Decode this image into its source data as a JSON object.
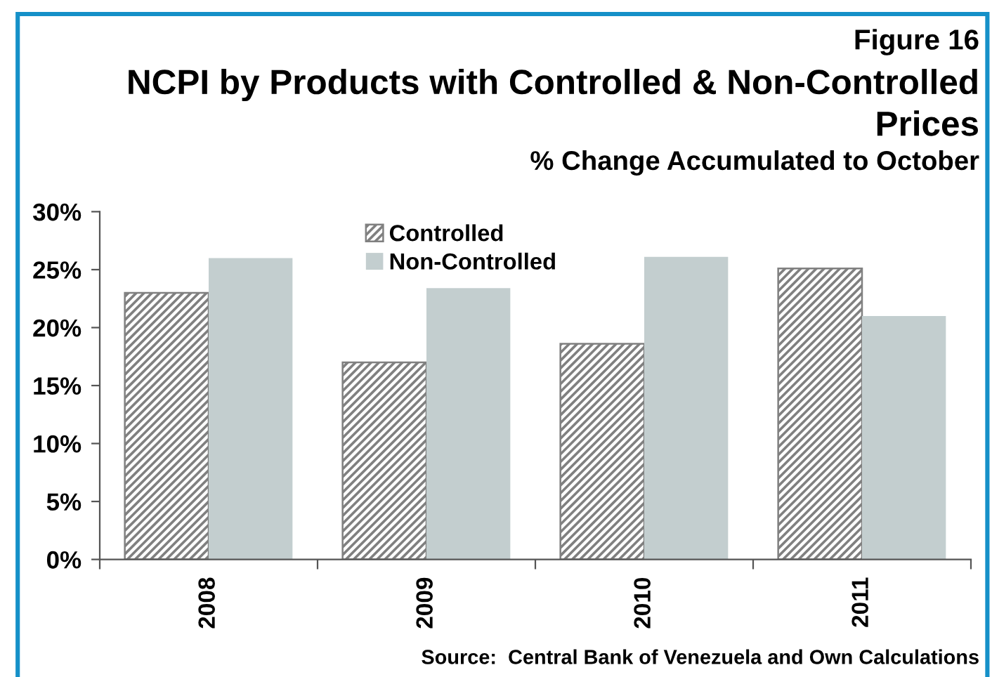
{
  "chart_data": {
    "type": "bar",
    "title": "NCPI by Products with Controlled & Non-Controlled Prices",
    "subtitle": "% Change Accumulated to October",
    "annotations": [
      "Figure 16",
      "Source:  Central Bank of Venezuela and Own Calculations"
    ],
    "categories": [
      "2008",
      "2009",
      "2010",
      "2011"
    ],
    "series": [
      {
        "name": "Controlled",
        "color": "#808080",
        "values": [
          23.0,
          17.0,
          18.6,
          25.1
        ]
      },
      {
        "name": "Non-Controlled",
        "color": "#c3cecf",
        "values": [
          26.0,
          23.4,
          26.1,
          21.0
        ]
      }
    ],
    "ylim": [
      0,
      30
    ],
    "yticks": [
      {
        "value": 0,
        "label": "0%"
      },
      {
        "value": 5,
        "label": "5%"
      },
      {
        "value": 10,
        "label": "10%"
      },
      {
        "value": 15,
        "label": "15%"
      },
      {
        "value": 20,
        "label": "20%"
      },
      {
        "value": 25,
        "label": "25%"
      },
      {
        "value": 30,
        "label": "30%"
      }
    ],
    "legend": "top"
  }
}
